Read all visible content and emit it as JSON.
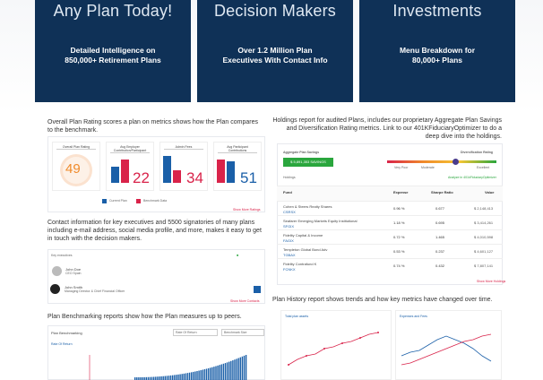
{
  "banner": {
    "cards": [
      {
        "title": "Any Plan Today!",
        "subtitle_line1": "Detailed Intelligence on",
        "subtitle_line2": "850,000+ Retirement Plans"
      },
      {
        "title": "Decision Makers",
        "subtitle_line1": "Over 1.2 Million Plan",
        "subtitle_line2": "Executives With Contact Info"
      },
      {
        "title": "Investments",
        "subtitle_line1": "Menu Breakdown for",
        "subtitle_line2": "80,000+ Plans"
      }
    ]
  },
  "rating": {
    "description": "Overall Plan Rating scores a plan on metrics shows how the Plan compares to the benchmark.",
    "overall_label": "Overall Plan Rating",
    "overall_value": "49",
    "metrics": [
      {
        "label": "Avg Employer Contribution/Participant",
        "value": "22",
        "color": "#d9234a"
      },
      {
        "label": "Admin Fees",
        "value": "34",
        "color": "#d9234a"
      },
      {
        "label": "Avg Participant Contributions",
        "value": "51",
        "color": "#1a5fa8"
      }
    ],
    "legend_current": "Current Plan",
    "legend_benchmark": "Benchmark Data",
    "show_more": "Show More Ratings"
  },
  "contacts": {
    "description": "Contact information for key executives and 5500 signatories of many plans including e-mail address, social media profile, and more, makes it easy to get in touch with the decision makers.",
    "key_exec_label": "Key executives",
    "people": [
      {
        "name": "John Doe",
        "title": "CEO Spain"
      },
      {
        "name": "John Smith",
        "title": "Managing Director & Chief Financial Officer"
      }
    ],
    "show_more": "Show More Contacts"
  },
  "benchmarking": {
    "description": "Plan Benchmarking reports show how the Plan measures up to peers.",
    "title": "Plan Benchmarking",
    "select1": "Rate Of Return",
    "select2": "Benchmark Size",
    "section": "Rate Of Return"
  },
  "holdings": {
    "description": "Holdings report for audited Plans, includes our proprietary Aggregate Plan Savings and Diversification Rating metrics. Link to our 401KFiduciaryOptimizer to do a deep dive into the holdings.",
    "agg_label": "Aggregate Plan Savings",
    "agg_button": "$ 5,891,353 SAVINGS",
    "div_label": "Diversification Rating",
    "div_low": "Very Poor",
    "div_mid": "Moderate",
    "div_high": "Excellent",
    "holdings_label": "Holdings",
    "optimizer_link": "Analyze in 401kFiduciaryOptimizer",
    "columns": [
      "Fund",
      "Expense",
      "Sharpe Ratio",
      "Value"
    ],
    "rows": [
      {
        "fund": "Cohen & Steers Realty Shares",
        "ticker": "CSRSX",
        "expense": "0.96 %",
        "sharpe": "0.677",
        "value": "$ 2,148,413"
      },
      {
        "fund": "Seafarer Emerging Markets Equity Institutional",
        "ticker": "SFGIX",
        "expense": "1.18 %",
        "sharpe": "0.695",
        "value": "$ 3,414,261"
      },
      {
        "fund": "Fidelity Capital & Income",
        "ticker": "FAGIX",
        "expense": "0.72 %",
        "sharpe": "1.465",
        "value": "$ 4,010,598"
      },
      {
        "fund": "Templeton Global Bond Adv",
        "ticker": "TGBAX",
        "expense": "0.53 %",
        "sharpe": "0.237",
        "value": "$ 4,601,127"
      },
      {
        "fund": "Fidelity Contrafund K",
        "ticker": "FCNKX",
        "expense": "0.74 %",
        "sharpe": "0.432",
        "value": "$ 7,807,141"
      }
    ],
    "show_more": "Show More Holdings"
  },
  "history": {
    "description": "Plan History report shows trends and how key metrics have changed over time.",
    "chart1_title": "Total plan assets",
    "chart2_title": "Expenses and Fees"
  }
}
